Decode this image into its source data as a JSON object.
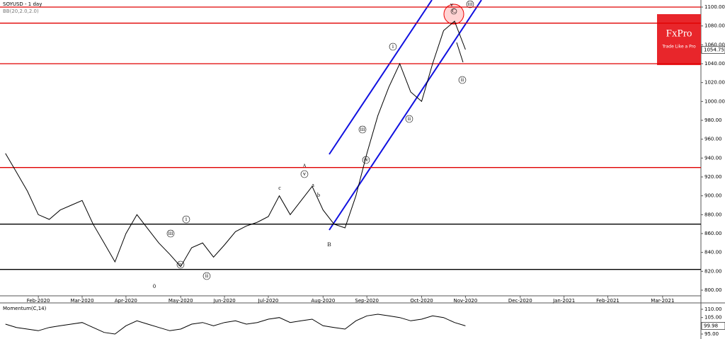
{
  "chart_data": [
    {
      "type": "line",
      "title": "SOYUSD - 1 day",
      "subtitle": "BB(20,2.0,2.0)",
      "brand": "FxPro",
      "tagline": "Trade Like a Pro",
      "categories": [
        null,
        null,
        null,
        "Feb-2020",
        null,
        null,
        null,
        "Mar-2020",
        null,
        null,
        null,
        "Apr-2020",
        null,
        null,
        null,
        null,
        "May-2020",
        null,
        null,
        null,
        "Jun-2020",
        null,
        null,
        null,
        "Jul-2020",
        null,
        null,
        null,
        null,
        "Aug-2020",
        null,
        null,
        null,
        "Sep-2020",
        null,
        null,
        null,
        null,
        "Oct-2020",
        null,
        null,
        null,
        "Nov-2020",
        null,
        null,
        null,
        null,
        "Dec-2020",
        null,
        null,
        null,
        "Jan-2021",
        null,
        null,
        null,
        "Feb-2021",
        null,
        null,
        null,
        null,
        "Mar-2021",
        null,
        null,
        null
      ],
      "series": [
        {
          "color": "#000000",
          "values": [
            945,
            925,
            905,
            880,
            875,
            885,
            890,
            895,
            870,
            850,
            830,
            860,
            880,
            865,
            850,
            838,
            825,
            845,
            850,
            835,
            848,
            862,
            868,
            872,
            878,
            900,
            880,
            895,
            910,
            885,
            870,
            866,
            900,
            945,
            985,
            1015,
            1040,
            1010,
            1000,
            1040,
            1075,
            1085,
            1055,
            null,
            null,
            null,
            null,
            null,
            null,
            null,
            null,
            null,
            null,
            null,
            null,
            null,
            null,
            null,
            null,
            null,
            null,
            null,
            null,
            null
          ]
        }
      ],
      "ylim": [
        794,
        1107.5
      ],
      "yticks": [
        {
          "value": 800,
          "label": "800.00"
        },
        {
          "value": 820,
          "label": "820.00"
        },
        {
          "value": 840,
          "label": "840.00"
        },
        {
          "value": 860,
          "label": "860.00"
        },
        {
          "value": 880,
          "label": "880.00"
        },
        {
          "value": 900,
          "label": "900.00"
        },
        {
          "value": 920,
          "label": "920.00"
        },
        {
          "value": 940,
          "label": "940.00"
        },
        {
          "value": 960,
          "label": "960.00"
        },
        {
          "value": 980,
          "label": "980.00"
        },
        {
          "value": 1000,
          "label": "1000.00"
        },
        {
          "value": 1020,
          "label": "1020.00"
        },
        {
          "value": 1040,
          "label": "1040.00"
        },
        {
          "value": 1060,
          "label": "1060.00"
        },
        {
          "value": 1080,
          "label": "1080.00"
        },
        {
          "value": 1100,
          "label": "1100.00"
        }
      ],
      "last_price": {
        "value": 1054.75,
        "label": "1054.75"
      },
      "levels": [
        {
          "value": 1100,
          "color": "#e00000"
        },
        {
          "value": 1083,
          "color": "#e00000"
        },
        {
          "value": 1040,
          "color": "#e00000"
        },
        {
          "value": 930,
          "color": "#e00000"
        },
        {
          "value": 870,
          "color": "#000000"
        },
        {
          "value": 822,
          "color": "#000000"
        }
      ],
      "annotations": [
        "A",
        "B",
        "0",
        "C",
        "i",
        "ii",
        "iii",
        "iv",
        "v",
        "ii",
        "iii",
        "v",
        "i",
        "ii",
        "iii",
        "iv",
        "a",
        "b",
        "c"
      ]
    },
    {
      "type": "line",
      "title": "Momentum(C,14)",
      "series": [
        {
          "color": "#000000",
          "values": [
            101,
            99,
            98,
            97,
            99,
            100,
            101,
            102,
            99,
            96,
            95,
            100,
            103,
            101,
            99,
            97,
            98,
            101,
            102,
            100,
            102,
            103,
            101,
            102,
            104,
            105,
            102,
            103,
            104,
            100,
            99,
            98,
            103,
            106,
            107,
            106,
            105,
            103,
            104,
            106,
            105,
            102,
            99.98,
            null,
            null,
            null,
            null,
            null,
            null,
            null,
            null,
            null,
            null,
            null,
            null,
            null,
            null,
            null,
            null,
            null,
            null,
            null,
            null,
            null
          ]
        }
      ],
      "ylim": [
        92,
        113
      ],
      "yticks": [
        {
          "value": 110,
          "label": "110.00"
        },
        {
          "value": 105,
          "label": "105.00"
        },
        {
          "value": 95,
          "label": "95.00"
        }
      ],
      "last_value": {
        "value": 99.98,
        "label": "99.98"
      }
    }
  ]
}
